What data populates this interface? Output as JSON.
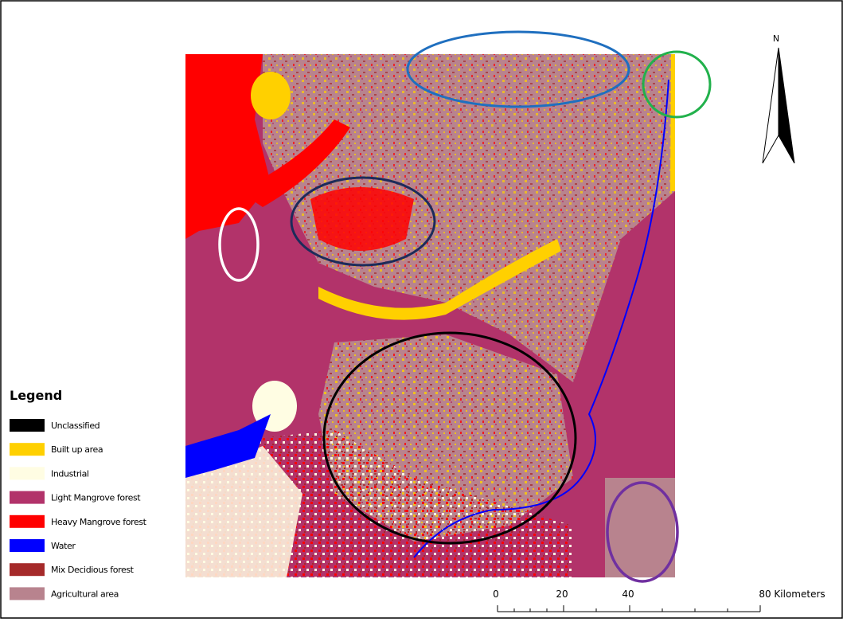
{
  "north_label": "N",
  "legend": {
    "title": "Legend",
    "items": [
      {
        "label": "Unclassified",
        "color": "#000000"
      },
      {
        "label": "Built up area",
        "color": "#ffd000"
      },
      {
        "label": "Industrial",
        "color": "#fffde3"
      },
      {
        "label": "Light Mangrove forest",
        "color": "#b2336a"
      },
      {
        "label": "Heavy Mangrove forest",
        "color": "#ff0000"
      },
      {
        "label": "Water",
        "color": "#0000ff"
      },
      {
        "label": "Mix Decidious forest",
        "color": "#a52a2a"
      },
      {
        "label": "Agricultural area",
        "color": "#b8838e"
      }
    ]
  },
  "scale_bar": {
    "labels": [
      "0",
      "20",
      "40",
      "80 Kilometers"
    ]
  }
}
